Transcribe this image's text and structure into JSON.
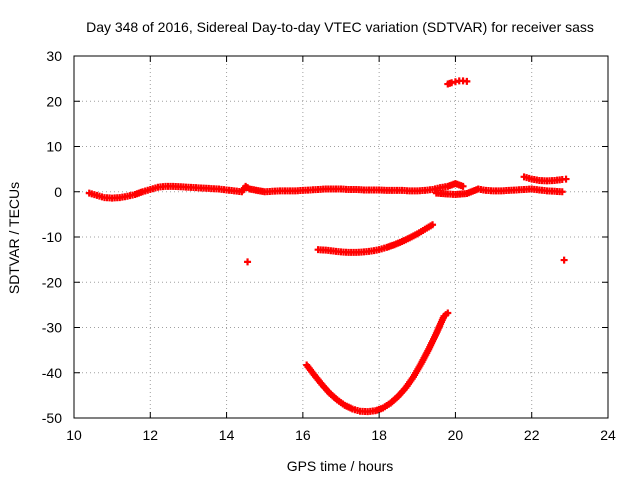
{
  "chart_data": {
    "type": "scatter",
    "title": "Day 348 of 2016, Sidereal Day-to-day VTEC variation (SDTVAR) for receiver sass",
    "xlabel": "GPS time / hours",
    "ylabel": "SDTVAR / TECUs",
    "xlim": [
      10,
      24
    ],
    "ylim": [
      -50,
      30
    ],
    "xticks": [
      10,
      12,
      14,
      16,
      18,
      20,
      22,
      24
    ],
    "yticks": [
      -50,
      -40,
      -30,
      -20,
      -10,
      0,
      10,
      20,
      30
    ],
    "grid": true,
    "marker_color": "#ff0000",
    "series": [
      {
        "points": [
          [
            10.4,
            -0.3
          ],
          [
            10.6,
            -0.8
          ],
          [
            10.8,
            -1.3
          ],
          [
            11.0,
            -1.4
          ],
          [
            11.2,
            -1.3
          ],
          [
            11.4,
            -1.0
          ],
          [
            11.6,
            -0.6
          ],
          [
            11.8,
            0.0
          ],
          [
            12.0,
            0.5
          ],
          [
            12.2,
            1.0
          ],
          [
            12.4,
            1.2
          ],
          [
            12.6,
            1.2
          ],
          [
            12.8,
            1.1
          ],
          [
            13.0,
            1.0
          ],
          [
            13.2,
            0.9
          ],
          [
            13.4,
            0.8
          ],
          [
            13.6,
            0.7
          ],
          [
            13.8,
            0.6
          ],
          [
            14.0,
            0.4
          ],
          [
            14.2,
            0.2
          ],
          [
            14.4,
            0.0
          ],
          [
            14.5,
            1.2
          ],
          [
            14.6,
            0.6
          ],
          [
            15.0,
            0.0
          ],
          [
            15.2,
            0.1
          ],
          [
            15.4,
            0.2
          ],
          [
            15.6,
            0.2
          ],
          [
            15.8,
            0.2
          ],
          [
            16.0,
            0.3
          ],
          [
            16.2,
            0.4
          ],
          [
            16.4,
            0.5
          ],
          [
            16.6,
            0.6
          ],
          [
            16.8,
            0.6
          ],
          [
            17.0,
            0.6
          ],
          [
            17.2,
            0.5
          ],
          [
            17.4,
            0.5
          ],
          [
            17.6,
            0.4
          ],
          [
            17.8,
            0.4
          ],
          [
            18.0,
            0.4
          ],
          [
            18.2,
            0.3
          ],
          [
            18.4,
            0.3
          ],
          [
            18.6,
            0.3
          ],
          [
            18.8,
            0.2
          ],
          [
            19.0,
            0.2
          ],
          [
            19.2,
            0.3
          ],
          [
            19.4,
            0.5
          ],
          [
            19.6,
            0.9
          ],
          [
            19.8,
            1.2
          ],
          [
            20.0,
            1.8
          ],
          [
            20.2,
            1.2
          ],
          [
            19.5,
            -0.3
          ],
          [
            19.8,
            -0.5
          ],
          [
            20.0,
            -0.6
          ],
          [
            20.3,
            -0.4
          ],
          [
            20.6,
            0.6
          ],
          [
            20.8,
            0.3
          ],
          [
            21.0,
            0.2
          ],
          [
            21.2,
            0.2
          ],
          [
            21.4,
            0.3
          ],
          [
            21.6,
            0.4
          ],
          [
            21.8,
            0.5
          ],
          [
            22.0,
            0.6
          ],
          [
            22.2,
            0.4
          ],
          [
            22.4,
            0.2
          ],
          [
            22.6,
            0.1
          ],
          [
            22.8,
            0.0
          ]
        ]
      },
      {
        "points": [
          [
            21.8,
            3.3
          ],
          [
            22.0,
            2.8
          ],
          [
            22.2,
            2.5
          ],
          [
            22.4,
            2.4
          ],
          [
            22.6,
            2.5
          ],
          [
            22.8,
            2.7
          ],
          [
            22.9,
            2.8
          ]
        ]
      },
      {
        "points": [
          [
            19.8,
            23.8
          ],
          [
            19.9,
            24.1
          ],
          [
            20.0,
            24.3
          ],
          [
            20.1,
            24.5
          ],
          [
            20.2,
            24.5
          ],
          [
            20.3,
            24.4
          ]
        ]
      },
      {
        "points": [
          [
            16.4,
            -12.8
          ],
          [
            16.6,
            -12.9
          ],
          [
            16.8,
            -13.1
          ],
          [
            17.0,
            -13.3
          ],
          [
            17.2,
            -13.4
          ],
          [
            17.4,
            -13.4
          ],
          [
            17.6,
            -13.3
          ],
          [
            17.8,
            -13.1
          ],
          [
            18.0,
            -12.8
          ],
          [
            18.2,
            -12.3
          ],
          [
            18.4,
            -11.7
          ],
          [
            18.6,
            -11.0
          ],
          [
            18.8,
            -10.2
          ],
          [
            19.0,
            -9.3
          ],
          [
            19.2,
            -8.3
          ],
          [
            19.4,
            -7.3
          ]
        ]
      },
      {
        "points": [
          [
            16.1,
            -38.3
          ],
          [
            16.3,
            -40.5
          ],
          [
            16.5,
            -42.6
          ],
          [
            16.7,
            -44.5
          ],
          [
            16.9,
            -46.0
          ],
          [
            17.1,
            -47.2
          ],
          [
            17.3,
            -48.0
          ],
          [
            17.5,
            -48.5
          ],
          [
            17.7,
            -48.6
          ],
          [
            17.9,
            -48.4
          ],
          [
            18.1,
            -47.8
          ],
          [
            18.3,
            -46.7
          ],
          [
            18.5,
            -45.2
          ],
          [
            18.7,
            -43.3
          ],
          [
            18.9,
            -40.9
          ],
          [
            19.1,
            -38.0
          ],
          [
            19.3,
            -34.8
          ],
          [
            19.5,
            -31.3
          ],
          [
            19.7,
            -27.5
          ],
          [
            19.8,
            -26.8
          ]
        ]
      },
      {
        "points": [
          [
            14.55,
            -15.5
          ],
          [
            22.85,
            -15.1
          ]
        ]
      }
    ]
  }
}
